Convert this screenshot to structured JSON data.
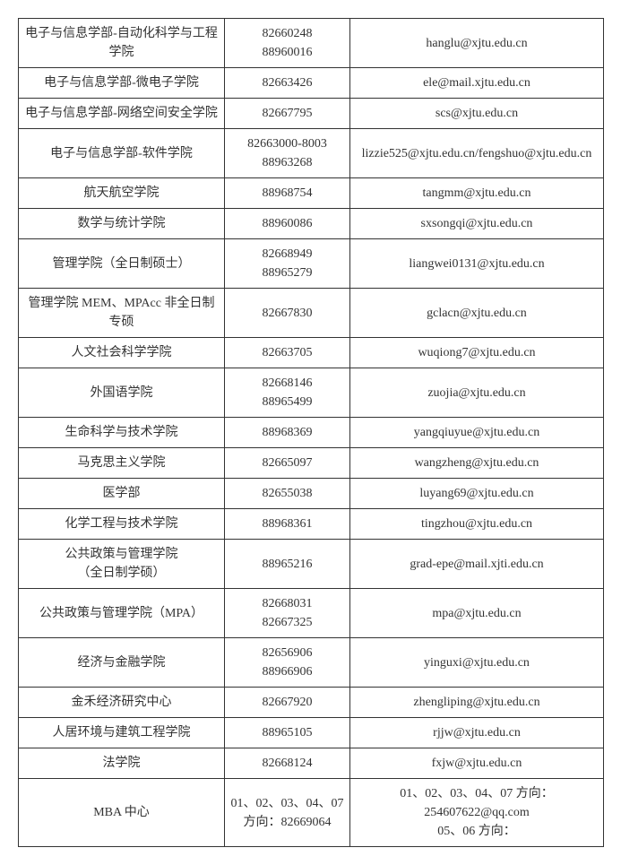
{
  "table": {
    "column_widths": {
      "dept": 230,
      "phone": 140,
      "email": 283
    },
    "border_color": "#333333",
    "text_color": "#333333",
    "background_color": "#ffffff",
    "font_size": 14,
    "rows": [
      {
        "dept": "电子与信息学部-自动化科学与工程学院",
        "phone": "82660248\n88960016",
        "email": "hanglu@xjtu.edu.cn"
      },
      {
        "dept": "电子与信息学部-微电子学院",
        "phone": "82663426",
        "email": "ele@mail.xjtu.edu.cn"
      },
      {
        "dept": "电子与信息学部-网络空间安全学院",
        "phone": "82667795",
        "email": "scs@xjtu.edu.cn"
      },
      {
        "dept": "电子与信息学部-软件学院",
        "phone": "82663000-8003\n88963268",
        "email": "lizzie525@xjtu.edu.cn/fengshuo@xjtu.edu.cn"
      },
      {
        "dept": "航天航空学院",
        "phone": "88968754",
        "email": "tangmm@xjtu.edu.cn"
      },
      {
        "dept": "数学与统计学院",
        "phone": "88960086",
        "email": "sxsongqi@xjtu.edu.cn"
      },
      {
        "dept": "管理学院（全日制硕士）",
        "phone": "82668949\n88965279",
        "email": "liangwei0131@xjtu.edu.cn"
      },
      {
        "dept": "管理学院 MEM、MPAcc 非全日制专硕",
        "phone": "82667830",
        "email": "gclacn@xjtu.edu.cn"
      },
      {
        "dept": "人文社会科学学院",
        "phone": "82663705",
        "email": "wuqiong7@xjtu.edu.cn"
      },
      {
        "dept": "外国语学院",
        "phone": "82668146\n88965499",
        "email": "zuojia@xjtu.edu.cn"
      },
      {
        "dept": "生命科学与技术学院",
        "phone": "88968369",
        "email": "yangqiuyue@xjtu.edu.cn"
      },
      {
        "dept": "马克思主义学院",
        "phone": "82665097",
        "email": "wangzheng@xjtu.edu.cn"
      },
      {
        "dept": "医学部",
        "phone": "82655038",
        "email": "luyang69@xjtu.edu.cn"
      },
      {
        "dept": "化学工程与技术学院",
        "phone": "88968361",
        "email": "tingzhou@xjtu.edu.cn"
      },
      {
        "dept": "公共政策与管理学院\n（全日制学硕）",
        "phone": "88965216",
        "email": "grad-epe@mail.xjti.edu.cn"
      },
      {
        "dept": "公共政策与管理学院（MPA）",
        "phone": "82668031\n82667325",
        "email": "mpa@xjtu.edu.cn"
      },
      {
        "dept": "经济与金融学院",
        "phone": "82656906\n88966906",
        "email": "yinguxi@xjtu.edu.cn"
      },
      {
        "dept": "金禾经济研究中心",
        "phone": "82667920",
        "email": "zhengliping@xjtu.edu.cn"
      },
      {
        "dept": "人居环境与建筑工程学院",
        "phone": "88965105",
        "email": "rjjw@xjtu.edu.cn"
      },
      {
        "dept": "法学院",
        "phone": "82668124",
        "email": "fxjw@xjtu.edu.cn"
      },
      {
        "dept": "MBA 中心",
        "phone": "01、02、03、04、07 方向：82669064",
        "email": "01、02、03、04、07 方向：254607622@qq.com\n05、06 方向："
      }
    ]
  }
}
